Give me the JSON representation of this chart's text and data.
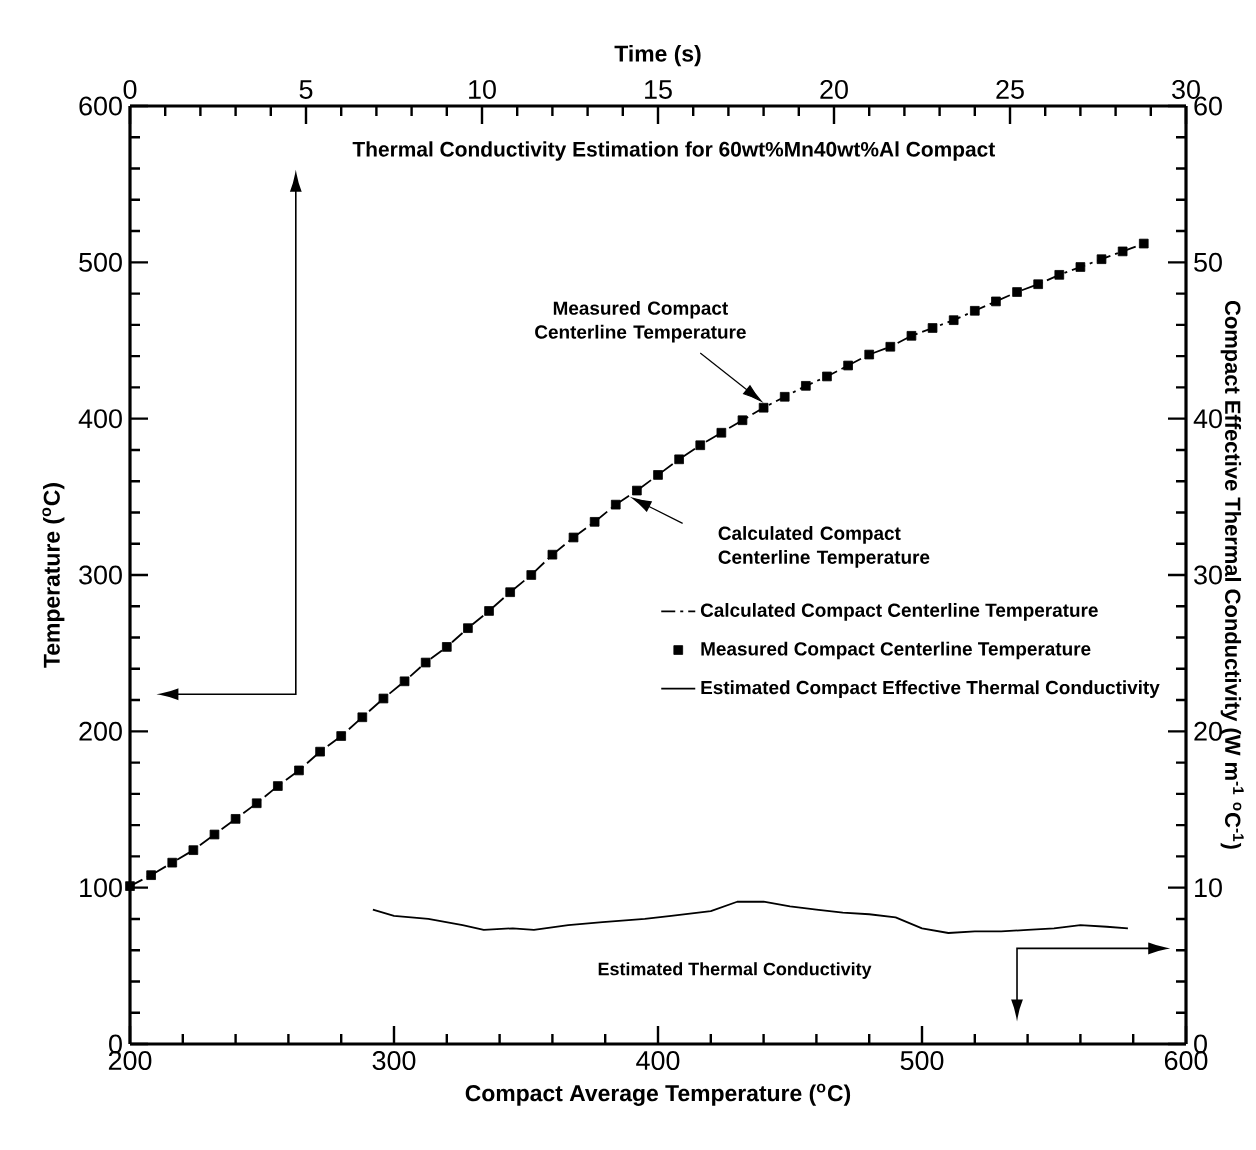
{
  "chart_data": {
    "type": "line",
    "title": "Thermal Conductivity Estimation for 60wt%Mn40wt%Al Compact",
    "xlabel": "Compact Average Temperature ($^{o}$C)",
    "x2label": "Time (s)",
    "ylabel": "Temperature ($^{o}$C)",
    "y2label": "Compact Effective Thermal Conductivity (W m$^{-1}$ $^{o}$C$^{-1}$)",
    "xlim": [
      200,
      600
    ],
    "xticks": [
      200,
      300,
      400,
      500,
      600
    ],
    "x2lim": [
      0,
      30
    ],
    "x2ticks": [
      0,
      5,
      10,
      15,
      20,
      25,
      30
    ],
    "ylim": [
      0,
      600
    ],
    "yticks": [
      0,
      100,
      200,
      300,
      400,
      500,
      600
    ],
    "y2lim": [
      0,
      60
    ],
    "y2ticks": [
      0,
      10,
      20,
      30,
      40,
      50,
      60
    ],
    "legend": "right",
    "annotations": [
      "Measured Compact Centerline Temperature",
      "Calculated Compact Centerline Temperature",
      "Estimated Thermal Conductivity"
    ],
    "series": [
      {
        "name": "Calculated Compact Centerline Temperature",
        "line_style": "dashdot",
        "axis": "x2",
        "color": "#000000",
        "x": [
          0.0,
          0.6,
          1.2,
          1.8,
          2.4,
          3.0,
          3.6,
          4.2,
          4.8,
          5.4,
          6.0,
          6.6,
          7.2,
          7.8,
          8.4,
          9.0,
          9.6,
          10.2,
          10.8,
          11.4,
          12.0,
          12.6,
          13.2,
          13.8,
          14.4,
          15.0,
          15.6,
          16.2,
          16.8,
          17.4,
          18.0,
          18.6,
          19.2,
          19.8,
          20.4,
          21.0,
          21.6,
          22.2,
          22.8,
          23.4,
          24.0,
          24.6,
          25.2,
          25.8,
          26.4,
          27.0,
          27.6,
          28.2,
          28.8
        ],
        "values": [
          101,
          108,
          116,
          124,
          134,
          144,
          154,
          165,
          175,
          187,
          197,
          209,
          221,
          232,
          244,
          254,
          266,
          277,
          289,
          300,
          313,
          324,
          334,
          345,
          354,
          364,
          374,
          383,
          391,
          399,
          407,
          414,
          421,
          427,
          434,
          441,
          446,
          453,
          458,
          463,
          469,
          475,
          481,
          486,
          492,
          497,
          502,
          507,
          512
        ]
      },
      {
        "name": "Measured Compact Centerline Temperature",
        "type": "scatter",
        "marker": "square",
        "axis": "x2",
        "color": "#000000",
        "x": [
          0.0,
          0.6,
          1.2,
          1.8,
          2.4,
          3.0,
          3.6,
          4.2,
          4.8,
          5.4,
          6.0,
          6.6,
          7.2,
          7.8,
          8.4,
          9.0,
          9.6,
          10.2,
          10.8,
          11.4,
          12.0,
          12.6,
          13.2,
          13.8,
          14.4,
          15.0,
          15.6,
          16.2,
          16.8,
          17.4,
          18.0,
          18.6,
          19.2,
          19.8,
          20.4,
          21.0,
          21.6,
          22.2,
          22.8,
          23.4,
          24.0,
          24.6,
          25.2,
          25.8,
          26.4,
          27.0,
          27.6,
          28.2,
          28.8
        ],
        "values": [
          101,
          108,
          116,
          124,
          134,
          144,
          154,
          165,
          175,
          187,
          197,
          209,
          221,
          232,
          244,
          254,
          266,
          277,
          289,
          300,
          313,
          324,
          334,
          345,
          354,
          364,
          374,
          383,
          391,
          399,
          407,
          414,
          421,
          427,
          434,
          441,
          446,
          453,
          458,
          463,
          469,
          475,
          481,
          486,
          492,
          497,
          502,
          507,
          512
        ]
      },
      {
        "name": "Estimated Compact Effective Thermal Conductivity",
        "line_style": "solid",
        "axis": "y2",
        "color": "#000000",
        "x": [
          292,
          300,
          313,
          326,
          334,
          345,
          353,
          366,
          379,
          395,
          405,
          420,
          430,
          440,
          450,
          460,
          470,
          480,
          490,
          500,
          510,
          520,
          530,
          540,
          550,
          560,
          570,
          578
        ],
        "values": [
          8.6,
          8.2,
          8.0,
          7.6,
          7.3,
          7.4,
          7.3,
          7.6,
          7.8,
          8.0,
          8.2,
          8.5,
          9.1,
          9.1,
          8.8,
          8.6,
          8.4,
          8.3,
          8.1,
          7.4,
          7.1,
          7.2,
          7.2,
          7.3,
          7.4,
          7.6,
          7.5,
          7.4
        ]
      }
    ]
  }
}
